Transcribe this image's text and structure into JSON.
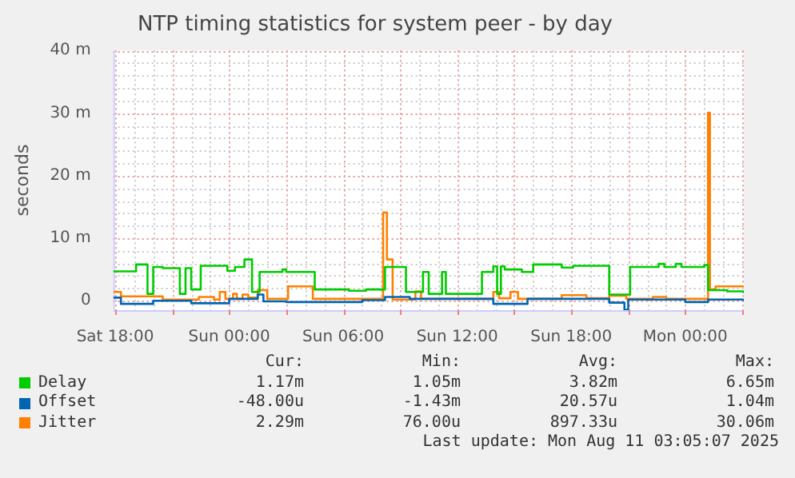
{
  "chart_data": {
    "type": "step",
    "title": "NTP timing statistics for system peer - by day",
    "ylabel": "seconds",
    "xlim": [
      "2025-08-09T17:54",
      "2025-08-11T03:05"
    ],
    "xticks": [
      {
        "value": "2025-08-09T18:00",
        "label": "Sat 18:00"
      },
      {
        "value": "2025-08-09T21:00",
        "label": null
      },
      {
        "value": "2025-08-10T00:00",
        "label": "Sun 00:00"
      },
      {
        "value": "2025-08-10T03:00",
        "label": null
      },
      {
        "value": "2025-08-10T06:00",
        "label": "Sun 06:00"
      },
      {
        "value": "2025-08-10T09:00",
        "label": null
      },
      {
        "value": "2025-08-10T12:00",
        "label": "Sun 12:00"
      },
      {
        "value": "2025-08-10T15:00",
        "label": null
      },
      {
        "value": "2025-08-10T18:00",
        "label": "Sun 18:00"
      },
      {
        "value": "2025-08-10T21:00",
        "label": null
      },
      {
        "value": "2025-08-11T00:00",
        "label": "Mon 00:00"
      },
      {
        "value": "2025-08-11T03:00",
        "label": null
      }
    ],
    "ylim": [
      -1.5,
      40
    ],
    "yticks": [
      {
        "value": 0,
        "label": "0"
      },
      {
        "value": 10,
        "label": "10 m"
      },
      {
        "value": 20,
        "label": "20 m"
      },
      {
        "value": 30,
        "label": "30 m"
      },
      {
        "value": 40,
        "label": "40 m"
      }
    ],
    "grid": true,
    "legend": "bottom",
    "series": [
      {
        "name": "Delay",
        "color": "#00cc00",
        "x": [
          "2025-08-09T17:54",
          "2025-08-09T19:06",
          "2025-08-09T19:42",
          "2025-08-09T20:00",
          "2025-08-09T20:30",
          "2025-08-09T21:24",
          "2025-08-09T21:42",
          "2025-08-09T22:00",
          "2025-08-09T22:30",
          "2025-08-09T23:54",
          "2025-08-10T00:18",
          "2025-08-10T00:48",
          "2025-08-10T01:12",
          "2025-08-10T01:36",
          "2025-08-10T02:48",
          "2025-08-10T03:00",
          "2025-08-10T04:30",
          "2025-08-10T06:18",
          "2025-08-10T07:12",
          "2025-08-10T08:12",
          "2025-08-10T09:18",
          "2025-08-10T10:12",
          "2025-08-10T10:30",
          "2025-08-10T11:12",
          "2025-08-10T11:24",
          "2025-08-10T13:18",
          "2025-08-10T13:54",
          "2025-08-10T14:06",
          "2025-08-10T14:18",
          "2025-08-10T14:30",
          "2025-08-10T15:24",
          "2025-08-10T16:00",
          "2025-08-10T17:30",
          "2025-08-10T18:06",
          "2025-08-10T19:42",
          "2025-08-10T20:00",
          "2025-08-10T21:06",
          "2025-08-10T22:36",
          "2025-08-10T22:54",
          "2025-08-10T23:30",
          "2025-08-10T23:48",
          "2025-08-11T01:00",
          "2025-08-11T01:12",
          "2025-08-11T02:12",
          "2025-08-11T03:05"
        ],
        "values": [
          4.7,
          5.8,
          1.1,
          5.4,
          5.2,
          1.1,
          5.2,
          1.8,
          5.6,
          4.8,
          5.4,
          6.6,
          1.4,
          4.6,
          5.0,
          4.6,
          1.8,
          1.6,
          1.8,
          5.4,
          1.4,
          4.6,
          1.1,
          4.6,
          1.1,
          4.6,
          5.5,
          1.1,
          5.5,
          5.0,
          4.6,
          5.8,
          5.3,
          5.6,
          5.6,
          1.0,
          5.4,
          5.9,
          5.4,
          5.9,
          5.4,
          5.7,
          1.7,
          1.5,
          1.17
        ]
      },
      {
        "name": "Offset",
        "color": "#0066b3",
        "x": [
          "2025-08-09T17:54",
          "2025-08-09T18:18",
          "2025-08-09T20:00",
          "2025-08-09T22:00",
          "2025-08-10T00:00",
          "2025-08-10T01:30",
          "2025-08-10T01:48",
          "2025-08-10T03:00",
          "2025-08-10T07:00",
          "2025-08-10T08:12",
          "2025-08-10T09:30",
          "2025-08-10T13:54",
          "2025-08-10T15:42",
          "2025-08-10T20:00",
          "2025-08-10T20:48",
          "2025-08-10T21:00",
          "2025-08-11T00:00",
          "2025-08-11T01:12",
          "2025-08-11T03:05"
        ],
        "values": [
          0.5,
          -0.5,
          0,
          -0.4,
          0.3,
          1.0,
          -0.1,
          -0.2,
          0.1,
          0.6,
          0.3,
          -0.5,
          0.3,
          -0.3,
          -1.43,
          0.2,
          -0.2,
          0.2,
          -0.048
        ]
      },
      {
        "name": "Jitter",
        "color": "#ff8000",
        "x": [
          "2025-08-09T17:54",
          "2025-08-09T18:18",
          "2025-08-09T20:30",
          "2025-08-09T22:24",
          "2025-08-09T23:12",
          "2025-08-09T23:30",
          "2025-08-09T23:48",
          "2025-08-10T00:12",
          "2025-08-10T00:24",
          "2025-08-10T00:42",
          "2025-08-10T01:00",
          "2025-08-10T01:30",
          "2025-08-10T02:00",
          "2025-08-10T03:06",
          "2025-08-10T04:24",
          "2025-08-10T08:06",
          "2025-08-10T08:18",
          "2025-08-10T08:36",
          "2025-08-10T09:48",
          "2025-08-10T10:06",
          "2025-08-10T13:54",
          "2025-08-10T14:12",
          "2025-08-10T14:48",
          "2025-08-10T15:12",
          "2025-08-10T17:30",
          "2025-08-10T18:48",
          "2025-08-10T20:00",
          "2025-08-10T20:54",
          "2025-08-10T22:18",
          "2025-08-10T23:00",
          "2025-08-11T01:12",
          "2025-08-11T01:18",
          "2025-08-11T01:36",
          "2025-08-11T03:05"
        ],
        "values": [
          1.4,
          0.7,
          0.2,
          0.6,
          0.2,
          1.4,
          0.3,
          1.1,
          0.3,
          1.0,
          0.5,
          1.7,
          0.3,
          2.3,
          0.3,
          14.1,
          6.6,
          0.2,
          1.5,
          0.3,
          1.4,
          0.4,
          1.4,
          0.3,
          0.9,
          0.4,
          0.8,
          0.3,
          0.6,
          0.3,
          30.06,
          1.8,
          2.3,
          2.29
        ]
      }
    ],
    "annotations": [
      "Cur:",
      "Min:",
      "Avg:",
      "Max:",
      "1.17m",
      "1.05m",
      "3.82m",
      "6.65m",
      "-48.00u",
      "-1.43m",
      "20.57u",
      "1.04m",
      "2.29m",
      "76.00u",
      "897.33u",
      "30.06m",
      "Last update: Mon Aug 11 03:05:07 2025"
    ]
  }
}
